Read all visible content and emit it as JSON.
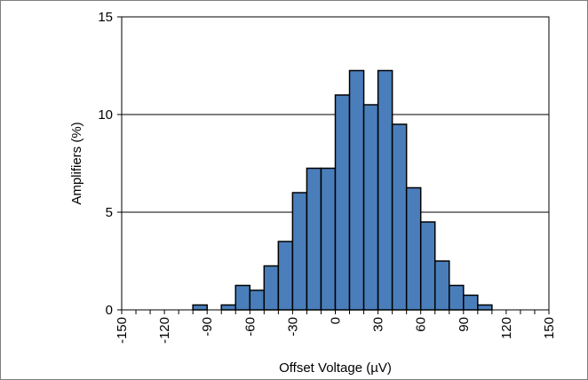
{
  "chart_data": {
    "type": "bar",
    "title": "",
    "xlabel": "Offset Voltage (µV)",
    "ylabel": "Amplifiers (%)",
    "xlim": [
      -150,
      150
    ],
    "ylim": [
      0,
      15
    ],
    "grid": true,
    "bin_width": 10,
    "bin_starts": [
      -150,
      -140,
      -130,
      -120,
      -110,
      -100,
      -90,
      -80,
      -70,
      -60,
      -50,
      -40,
      -30,
      -20,
      -10,
      0,
      10,
      20,
      30,
      40,
      50,
      60,
      70,
      80,
      90,
      100,
      110,
      120,
      130,
      140
    ],
    "values": [
      0,
      0,
      0,
      0,
      0,
      0.25,
      0,
      0.25,
      1.25,
      1,
      2.25,
      3.5,
      6,
      7.25,
      7.25,
      11,
      12.25,
      10.5,
      12.25,
      9.5,
      6.25,
      4.5,
      2.5,
      1.25,
      0.75,
      0.25,
      0,
      0,
      0,
      0
    ],
    "x_ticks": [
      "-150",
      "-120",
      "-90",
      "-60",
      "-30",
      "0",
      "30",
      "60",
      "90",
      "120",
      "150"
    ],
    "x_tick_values": [
      -150,
      -120,
      -90,
      -60,
      -30,
      0,
      30,
      60,
      90,
      120,
      150
    ],
    "y_ticks": [
      "0",
      "5",
      "10",
      "15"
    ],
    "y_tick_values": [
      0,
      5,
      10,
      15
    ],
    "bar_color": "#4a7ebb",
    "bar_edge_color": "#000000",
    "grid_color": "#000000"
  }
}
